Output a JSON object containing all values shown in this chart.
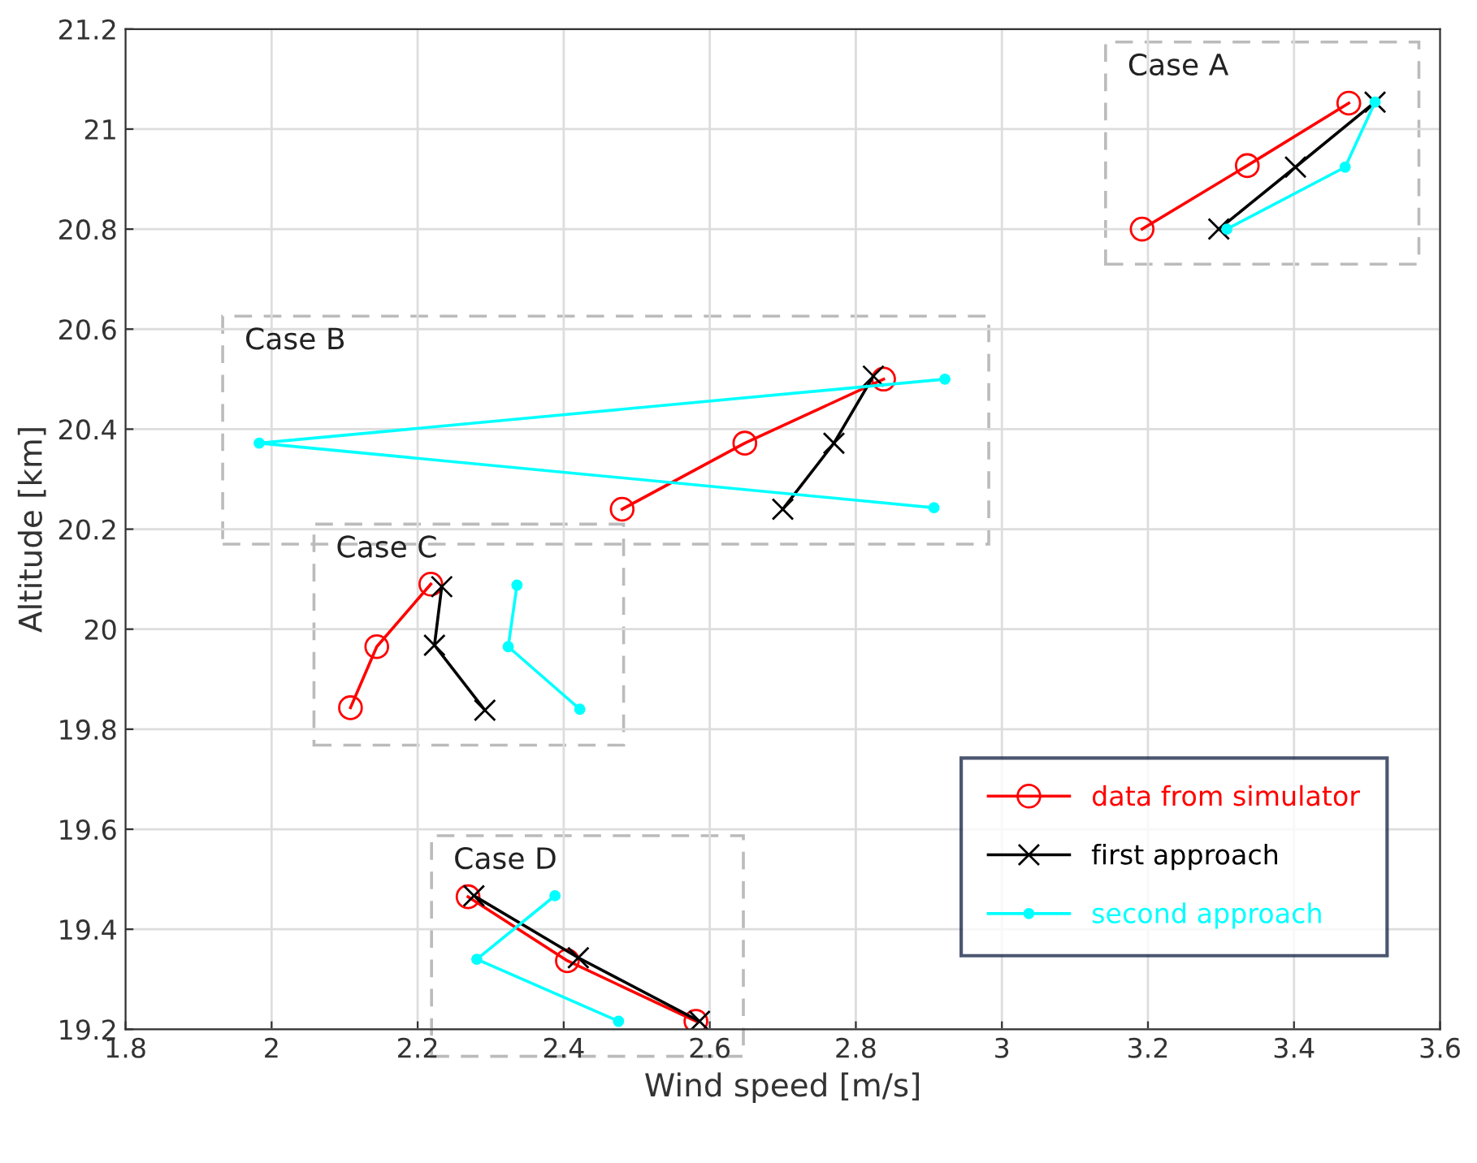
{
  "chart_data": {
    "type": "line",
    "xlabel": "Wind speed [m/s]",
    "ylabel": "Altitude [km]",
    "xlim": [
      1.8,
      3.6
    ],
    "xticks": [
      1.8,
      2,
      2.2,
      2.4,
      2.6,
      2.8,
      3,
      3.2,
      3.4,
      3.6
    ],
    "ylim": [
      19.2,
      21.2
    ],
    "yticks": [
      19.2,
      19.4,
      19.6,
      19.8,
      20,
      20.2,
      20.4,
      20.6,
      20.8,
      21,
      21.2
    ],
    "grid": true,
    "legend": "bottom right",
    "series": [
      {
        "name": "data from simulator",
        "color": "#ff0000",
        "marker": "circle",
        "x": [
          3.192,
          3.336,
          3.475,
          null,
          2.48,
          2.648,
          2.838,
          null,
          2.108,
          2.144,
          2.218,
          null,
          2.269,
          2.405,
          2.581
        ],
        "values": [
          20.8,
          20.927,
          21.052,
          null,
          20.24,
          20.372,
          20.5,
          null,
          19.843,
          19.965,
          20.09,
          null,
          19.465,
          19.337,
          19.216
        ]
      },
      {
        "name": "first approach",
        "color": "#000000",
        "marker": "cross",
        "x": [
          3.297,
          3.402,
          3.511,
          null,
          2.7,
          2.77,
          2.824,
          null,
          2.292,
          2.223,
          2.233,
          null,
          2.277,
          2.42,
          2.586
        ],
        "values": [
          20.8,
          20.924,
          21.054,
          null,
          20.24,
          20.372,
          20.506,
          null,
          19.838,
          19.968,
          20.085,
          null,
          19.467,
          19.343,
          19.216
        ]
      },
      {
        "name": "second approach",
        "color": "#00ffff",
        "marker": "circle",
        "x": [
          3.308,
          3.47,
          3.511,
          null,
          2.907,
          1.983,
          2.922,
          null,
          2.422,
          2.324,
          2.336,
          null,
          2.475,
          2.281,
          2.388
        ],
        "values": [
          20.8,
          20.924,
          21.054,
          null,
          20.243,
          20.372,
          20.5,
          null,
          19.84,
          19.965,
          20.088,
          null,
          19.216,
          19.34,
          19.467
        ]
      }
    ],
    "annotations": [
      "Case A",
      "Case B",
      "Case C",
      "Case D"
    ]
  }
}
